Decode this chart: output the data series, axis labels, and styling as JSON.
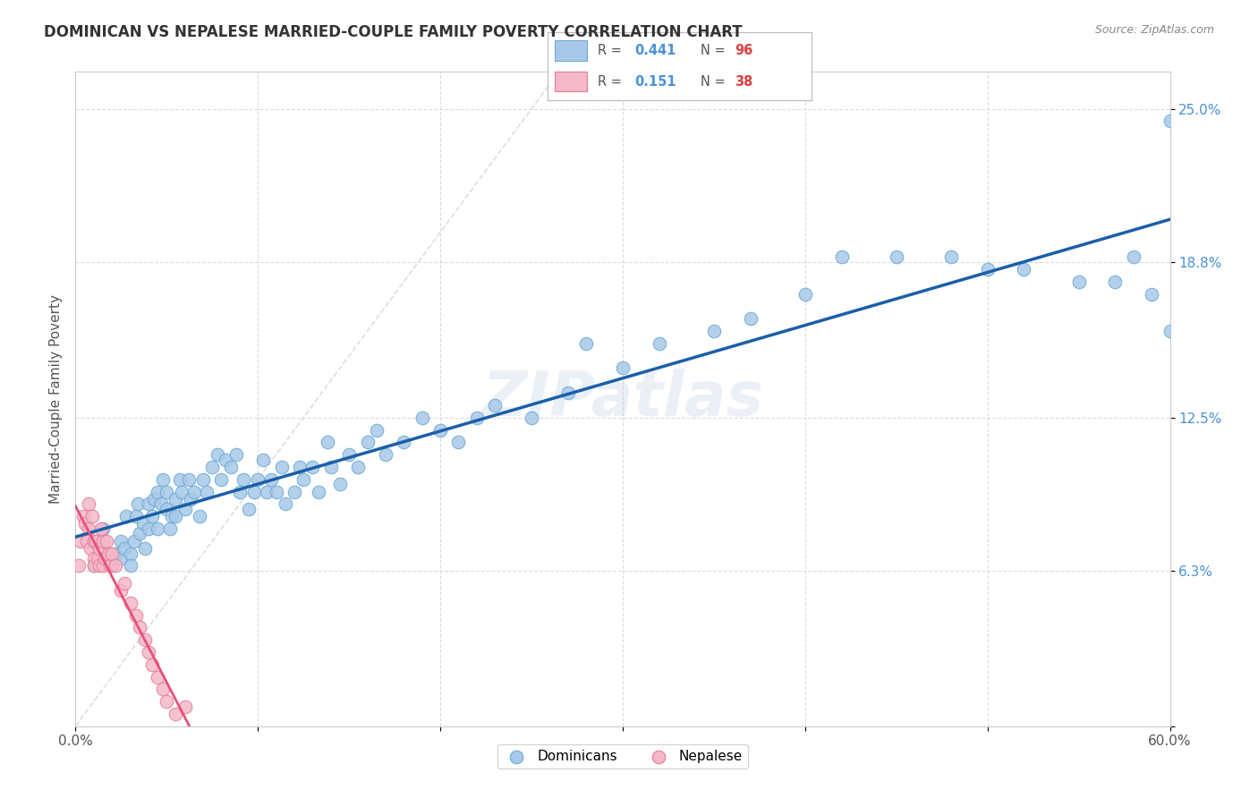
{
  "title": "DOMINICAN VS NEPALESE MARRIED-COUPLE FAMILY POVERTY CORRELATION CHART",
  "source": "Source: ZipAtlas.com",
  "ylabel": "Married-Couple Family Poverty",
  "xlim": [
    0.0,
    0.6
  ],
  "ylim": [
    0.0,
    0.265
  ],
  "xticks": [
    0.0,
    0.1,
    0.2,
    0.3,
    0.4,
    0.5,
    0.6
  ],
  "xticklabels": [
    "0.0%",
    "",
    "",
    "",
    "",
    "",
    "60.0%"
  ],
  "yticks": [
    0.0,
    0.063,
    0.125,
    0.188,
    0.25
  ],
  "yticklabels": [
    "",
    "6.3%",
    "12.5%",
    "18.8%",
    "25.0%"
  ],
  "blue_color": "#a8c8e8",
  "blue_edge": "#6aaad4",
  "pink_color": "#f4b8c8",
  "pink_edge": "#e87a9a",
  "blue_line_color": "#1a5fa8",
  "pink_line_color": "#e8507a",
  "diag_line_color": "#c8c8d0",
  "background_color": "#ffffff",
  "watermark": "ZIPatlas",
  "blue_intercept": 0.075,
  "blue_slope": 0.135,
  "pink_intercept": 0.005,
  "pink_slope": 1.2,
  "blue_x": [
    0.01,
    0.012,
    0.015,
    0.018,
    0.02,
    0.022,
    0.025,
    0.025,
    0.027,
    0.028,
    0.03,
    0.03,
    0.032,
    0.033,
    0.034,
    0.035,
    0.037,
    0.038,
    0.04,
    0.04,
    0.042,
    0.043,
    0.045,
    0.045,
    0.047,
    0.048,
    0.05,
    0.05,
    0.052,
    0.053,
    0.055,
    0.055,
    0.057,
    0.058,
    0.06,
    0.062,
    0.063,
    0.065,
    0.068,
    0.07,
    0.072,
    0.075,
    0.078,
    0.08,
    0.082,
    0.085,
    0.088,
    0.09,
    0.092,
    0.095,
    0.098,
    0.1,
    0.103,
    0.105,
    0.107,
    0.11,
    0.113,
    0.115,
    0.12,
    0.123,
    0.125,
    0.13,
    0.133,
    0.138,
    0.14,
    0.145,
    0.15,
    0.155,
    0.16,
    0.165,
    0.17,
    0.18,
    0.19,
    0.2,
    0.21,
    0.22,
    0.23,
    0.25,
    0.27,
    0.28,
    0.3,
    0.32,
    0.35,
    0.37,
    0.4,
    0.42,
    0.45,
    0.48,
    0.5,
    0.52,
    0.55,
    0.57,
    0.58,
    0.59,
    0.6,
    0.6
  ],
  "blue_y": [
    0.065,
    0.075,
    0.08,
    0.07,
    0.065,
    0.07,
    0.075,
    0.068,
    0.072,
    0.085,
    0.07,
    0.065,
    0.075,
    0.085,
    0.09,
    0.078,
    0.082,
    0.072,
    0.09,
    0.08,
    0.085,
    0.092,
    0.095,
    0.08,
    0.09,
    0.1,
    0.088,
    0.095,
    0.08,
    0.085,
    0.092,
    0.085,
    0.1,
    0.095,
    0.088,
    0.1,
    0.092,
    0.095,
    0.085,
    0.1,
    0.095,
    0.105,
    0.11,
    0.1,
    0.108,
    0.105,
    0.11,
    0.095,
    0.1,
    0.088,
    0.095,
    0.1,
    0.108,
    0.095,
    0.1,
    0.095,
    0.105,
    0.09,
    0.095,
    0.105,
    0.1,
    0.105,
    0.095,
    0.115,
    0.105,
    0.098,
    0.11,
    0.105,
    0.115,
    0.12,
    0.11,
    0.115,
    0.125,
    0.12,
    0.115,
    0.125,
    0.13,
    0.125,
    0.135,
    0.155,
    0.145,
    0.155,
    0.16,
    0.165,
    0.175,
    0.19,
    0.19,
    0.19,
    0.185,
    0.185,
    0.18,
    0.18,
    0.19,
    0.175,
    0.245,
    0.16
  ],
  "pink_x": [
    0.002,
    0.003,
    0.004,
    0.005,
    0.006,
    0.007,
    0.007,
    0.008,
    0.009,
    0.01,
    0.01,
    0.01,
    0.011,
    0.012,
    0.013,
    0.013,
    0.014,
    0.015,
    0.015,
    0.016,
    0.017,
    0.018,
    0.019,
    0.02,
    0.022,
    0.025,
    0.027,
    0.03,
    0.033,
    0.035,
    0.038,
    0.04,
    0.042,
    0.045,
    0.048,
    0.05,
    0.055,
    0.06
  ],
  "pink_y": [
    0.065,
    0.075,
    0.085,
    0.082,
    0.075,
    0.09,
    0.08,
    0.072,
    0.085,
    0.068,
    0.075,
    0.065,
    0.075,
    0.068,
    0.072,
    0.065,
    0.08,
    0.075,
    0.065,
    0.068,
    0.075,
    0.07,
    0.065,
    0.07,
    0.065,
    0.055,
    0.058,
    0.05,
    0.045,
    0.04,
    0.035,
    0.03,
    0.025,
    0.02,
    0.015,
    0.01,
    0.005,
    0.008
  ]
}
